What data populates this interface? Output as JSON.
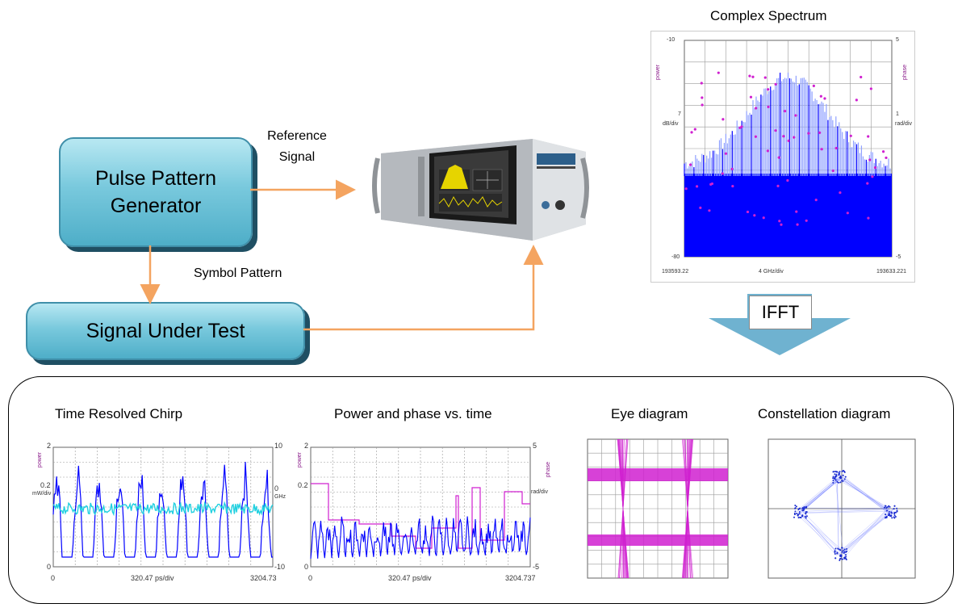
{
  "blocks": {
    "pulse_generator": "Pulse Pattern\nGenerator",
    "signal_under_test": "Signal Under Test"
  },
  "labels": {
    "reference_signal": "Reference\nSignal",
    "symbol_pattern": "Symbol Pattern",
    "ifft": "IFFT"
  },
  "spectrum": {
    "title": "Complex Spectrum",
    "y_top": "-10",
    "y_mid": "7",
    "y_unit": "dB/div",
    "y_bottom": "-80",
    "y2_top": "5",
    "y2_mid": "1",
    "y2_unit": "rad/div",
    "y2_bottom": "-5",
    "y_side": "power",
    "y2_side": "phase",
    "x_left": "193593.22",
    "x_center": "4 GHz/div",
    "x_right": "193633.221"
  },
  "panels": {
    "chirp": {
      "title": "Time Resolved Chirp",
      "y_top": "2",
      "y_mid": "0.2",
      "y_unit": "mW/div",
      "y_bottom": "0",
      "y2_top": "10",
      "y2_mid": "0",
      "y2_unit": "GHz",
      "y2_bottom": "-10",
      "y_side": "power",
      "x_left": "0",
      "x_center": "320.47 ps/div",
      "x_right": "3204.73"
    },
    "power_phase": {
      "title": "Power and phase vs. time",
      "y_top": "2",
      "y_mid": "0.2",
      "y_bottom": "0",
      "y2_top": "5",
      "y2_unit": "rad/div",
      "y2_bottom": "-5",
      "y_side": "power",
      "y2_side": "phase",
      "x_left": "0",
      "x_center": "320.47 ps/div",
      "x_right": "3204.737"
    },
    "eye": {
      "title": "Eye diagram"
    },
    "constellation": {
      "title": "Constellation diagram"
    }
  },
  "colors": {
    "block_fill": "#79c9dd",
    "arrow": "#f4a460",
    "grid": "#9a9a9a",
    "blue": "#0000ff",
    "magenta": "#d020d0",
    "cyan": "#20d0e0",
    "ifft": "#6fb2d0"
  },
  "icons": {
    "instrument": "analyzer-instrument-icon"
  }
}
